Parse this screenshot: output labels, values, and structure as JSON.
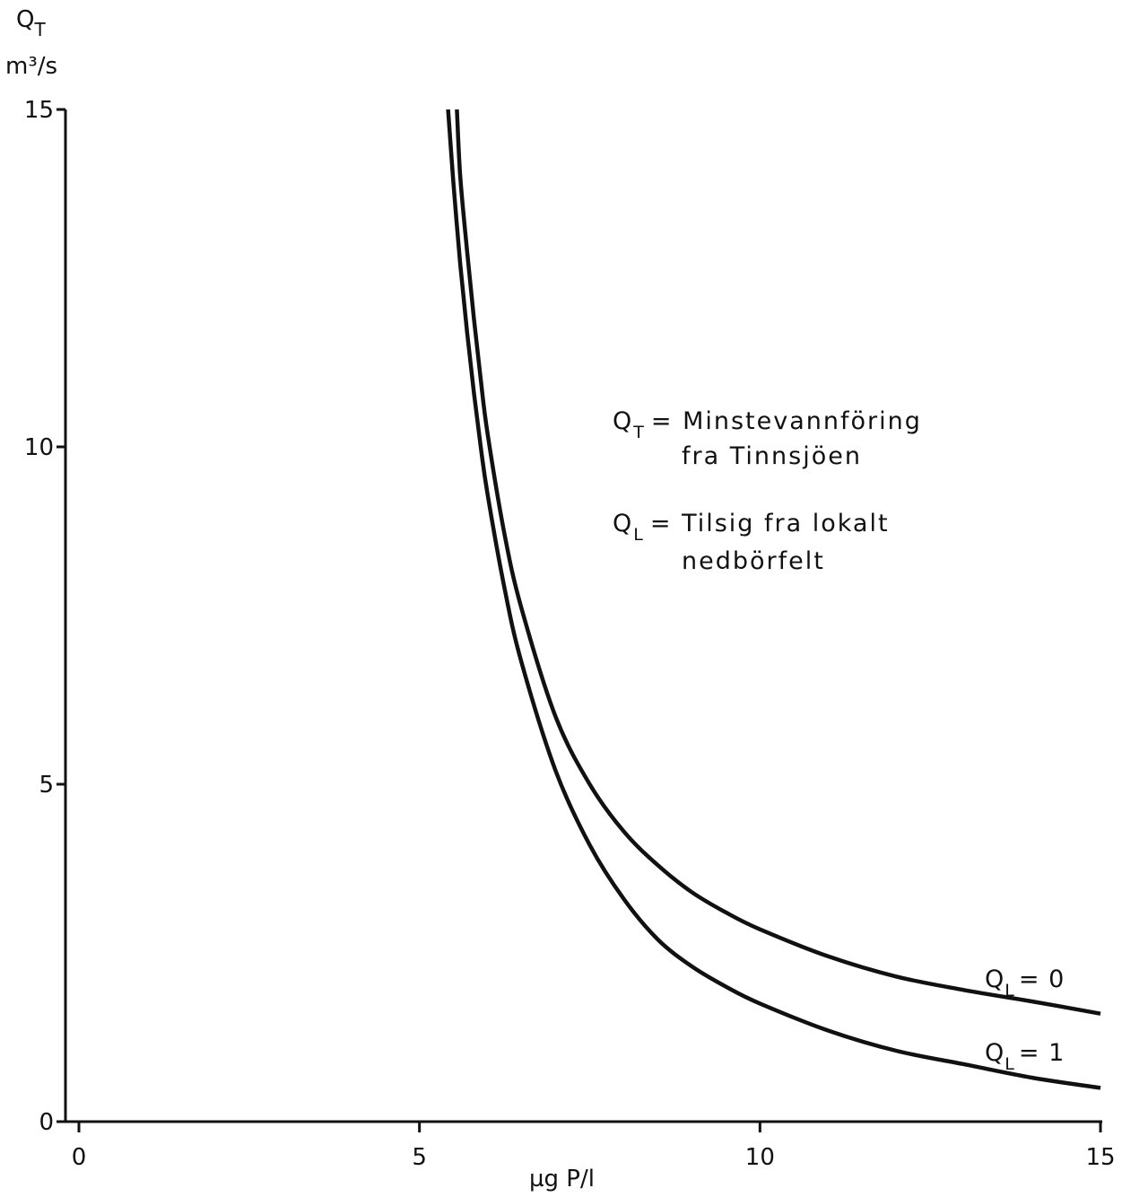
{
  "chart_data": {
    "type": "line",
    "title": "",
    "xlabel": "µg P/l",
    "ylabel_symbol": "Q",
    "ylabel_subscript": "T",
    "ylabel_unit": "m³/s",
    "xlim": [
      0,
      15
    ],
    "ylim": [
      0,
      15
    ],
    "x_ticks": [
      0,
      5,
      10,
      15
    ],
    "y_ticks": [
      0,
      5,
      10,
      15
    ],
    "x_tick_labels": [
      "0",
      "5",
      "10",
      "15"
    ],
    "y_tick_labels": [
      "0",
      "5",
      "10",
      "15"
    ],
    "grid": false,
    "legend_placement": "center-right",
    "legend": [
      {
        "symbol": "Q",
        "sub": "T",
        "text_line1": "= Minstevannföring",
        "text_line2": "fra Tinnsjöen"
      },
      {
        "symbol": "Q",
        "sub": "L",
        "text_line1": "= Tilsig fra lokalt",
        "text_line2": "nedbörfelt"
      }
    ],
    "series": [
      {
        "name": "Q",
        "name_sub": "L",
        "name_suffix": "= 0",
        "x": [
          5.55,
          5.6,
          5.7,
          5.8,
          5.9,
          6.0,
          6.25,
          6.5,
          7.0,
          7.5,
          8.0,
          8.5,
          9.0,
          9.5,
          10.0,
          11.0,
          12.0,
          13.0,
          14.0,
          15.0
        ],
        "y": [
          15.0,
          14.0,
          12.9,
          11.9,
          11.0,
          10.2,
          8.7,
          7.6,
          6.0,
          5.0,
          4.3,
          3.8,
          3.4,
          3.1,
          2.85,
          2.45,
          2.15,
          1.95,
          1.78,
          1.6
        ]
      },
      {
        "name": "Q",
        "name_sub": "L",
        "name_suffix": "= 1",
        "x": [
          5.42,
          5.5,
          5.6,
          5.7,
          5.8,
          5.9,
          6.0,
          6.25,
          6.5,
          7.0,
          7.5,
          8.0,
          8.5,
          9.0,
          9.5,
          10.0,
          11.0,
          12.0,
          13.0,
          14.0,
          15.0
        ],
        "y": [
          15.0,
          13.9,
          12.7,
          11.7,
          10.8,
          10.0,
          9.3,
          7.9,
          6.8,
          5.2,
          4.1,
          3.3,
          2.7,
          2.3,
          2.0,
          1.75,
          1.35,
          1.05,
          0.85,
          0.65,
          0.5
        ]
      }
    ]
  }
}
